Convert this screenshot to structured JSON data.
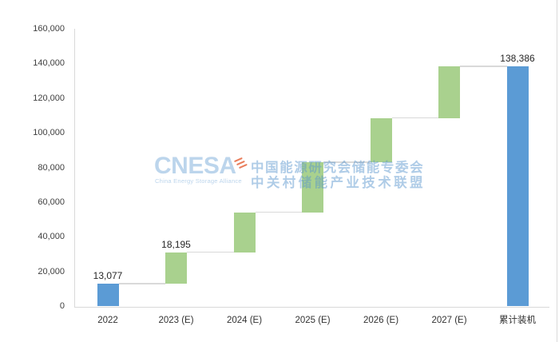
{
  "watermark": {
    "logo_text": "CNESA",
    "logo_subtext": "China Energy Storage Alliance",
    "cn_line1": "中国能源研究会储能专委会",
    "cn_line2": "中关村储能产业技术联盟",
    "logo_color": "rgba(96,156,210,0.42)",
    "cn_color": "rgba(88,148,204,0.48)",
    "accent_color": "rgba(228,92,50,0.8)"
  },
  "chart_data": {
    "type": "bar",
    "subtype": "waterfall",
    "title": "",
    "xlabel": "",
    "ylabel": "",
    "grid": "off",
    "legend": "none",
    "categories": [
      "2022",
      "2023 (E)",
      "2024 (E)",
      "2025 (E)",
      "2026 (E)",
      "2027 (E)",
      "累计装机"
    ],
    "series": [
      {
        "name": "累计装机",
        "bars": [
          {
            "category": "2022",
            "start": 0,
            "end": 13077,
            "value_label": "13,077",
            "role": "base"
          },
          {
            "category": "2023 (E)",
            "start": 13077,
            "end": 31272,
            "value_label": "18,195",
            "role": "increment"
          },
          {
            "category": "2024 (E)",
            "start": 31272,
            "end": 54300,
            "value_label": "",
            "role": "increment"
          },
          {
            "category": "2025 (E)",
            "start": 54300,
            "end": 83100,
            "value_label": "",
            "role": "increment"
          },
          {
            "category": "2026 (E)",
            "start": 83100,
            "end": 108600,
            "value_label": "",
            "role": "increment"
          },
          {
            "category": "2027 (E)",
            "start": 108600,
            "end": 138386,
            "value_label": "",
            "role": "increment"
          },
          {
            "category": "累计装机",
            "start": 0,
            "end": 138386,
            "value_label": "138,386",
            "role": "total"
          }
        ]
      }
    ],
    "y_axis": {
      "min": 0,
      "max": 160000,
      "step": 20000,
      "tick_labels": [
        "0",
        "20,000",
        "40,000",
        "60,000",
        "80,000",
        "100,000",
        "120,000",
        "140,000",
        "160,000"
      ]
    },
    "colors": {
      "base_bar": "#5b9bd5",
      "increment_bar": "#a9d18e",
      "connector": "#d9d9d9",
      "axis_line": "#d9d9d9",
      "tick_text": "#3f3f3f",
      "value_label_text": "#262626"
    }
  }
}
